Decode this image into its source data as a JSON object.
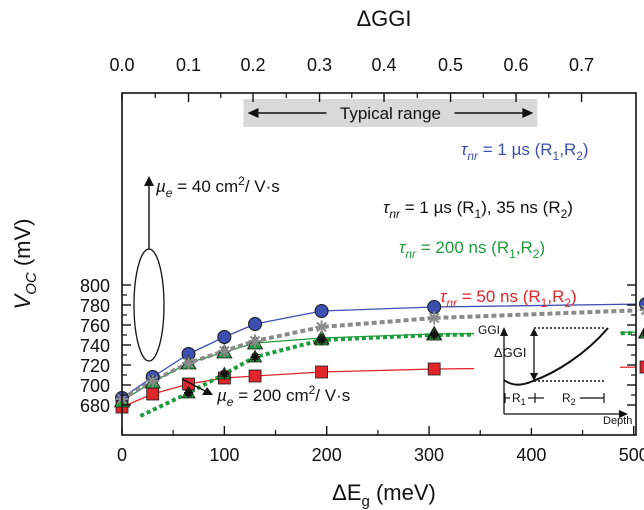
{
  "chart_data": {
    "type": "line",
    "xlabel": {
      "base": "ΔE",
      "sub": "g",
      "rest": " (meV)"
    },
    "ylabel": {
      "base": "V",
      "sub": "OC",
      "rest": " (mV)"
    },
    "top_axis_label": "ΔGGI",
    "xlim": [
      0,
      520
    ],
    "ylim": [
      670,
      810
    ],
    "x_ticks": [
      "0",
      "100",
      "200",
      "300",
      "400",
      "500"
    ],
    "x_tick_values": [
      0,
      100,
      200,
      300,
      400,
      500
    ],
    "y_ticks": [
      "680",
      "700",
      "720",
      "740",
      "760",
      "780",
      "800"
    ],
    "y_tick_values": [
      680,
      700,
      720,
      740,
      760,
      780,
      800
    ],
    "top_ticks": [
      "0.0",
      "0.1",
      "0.2",
      "0.3",
      "0.4",
      "0.5",
      "0.6",
      "0.7"
    ],
    "top_tick_dEg": [
      0,
      65,
      128,
      193,
      256,
      321,
      385,
      449
    ],
    "typical_range": {
      "label": "Typical range",
      "x": [
        150,
        400
      ]
    },
    "series": [
      {
        "name": "τnr = 1 µs (R1,R2)",
        "color": "#3d4fb0",
        "marker": "circle",
        "line": "solid",
        "x": [
          0,
          30,
          65,
          100,
          130,
          195,
          305,
          512
        ],
        "y": [
          687,
          708,
          731,
          748,
          761,
          774,
          778,
          781
        ]
      },
      {
        "name": "τnr = 1 µs (R1), 35 ns (R2)",
        "color": "#8a8a8a",
        "marker": "star",
        "line": "dashed",
        "x": [
          0,
          30,
          65,
          100,
          130,
          195,
          305,
          512
        ],
        "y": [
          686,
          704,
          722,
          734,
          744,
          758,
          767,
          775
        ]
      },
      {
        "name": "τnr = 200 ns (R1,R2)",
        "color": "#1e9b3c",
        "marker": "triangle",
        "line": "solid",
        "x": [
          0,
          30,
          65,
          100,
          130,
          195,
          305,
          512
        ],
        "y": [
          684,
          703,
          722,
          733,
          742,
          747,
          751,
          753
        ]
      },
      {
        "name": "τnr = 50 ns (R1,R2)",
        "color": "#e0262b",
        "marker": "square",
        "line": "solid",
        "x": [
          0,
          30,
          65,
          100,
          130,
          195,
          305,
          512
        ],
        "y": [
          678,
          691,
          701,
          707,
          709,
          713,
          716,
          718
        ]
      },
      {
        "name": "µe = 200 cm2/V·s",
        "color": "#1e9b3c",
        "marker": "star-on-triangle",
        "line": "dotted",
        "x": [
          65,
          100,
          130,
          195,
          305,
          512
        ],
        "y": [
          692,
          711,
          728,
          745,
          750,
          752
        ],
        "line_x": [
          18,
          65,
          100,
          130,
          195,
          305,
          512
        ],
        "line_y": [
          669,
          692,
          711,
          728,
          745,
          750,
          752
        ]
      }
    ],
    "labels": {
      "s1": [
        "τ",
        "nr",
        " = 1 µs (R",
        "1",
        ",R",
        "2",
        ")"
      ],
      "s2": [
        "τ",
        "nr",
        " = 1 µs (R",
        "1",
        "), 35 ns (R",
        "2",
        ")"
      ],
      "s3": [
        "τ",
        "nr",
        " = 200 ns (R",
        "1",
        ",R",
        "2",
        ")"
      ],
      "s4": [
        "τ",
        "nr",
        " = 50 ns (R",
        "1",
        ",R",
        "2",
        ")"
      ],
      "mu40": [
        "µ",
        "e",
        " = 40 cm",
        "2",
        "/ V·s"
      ],
      "mu200": [
        "µ",
        "e",
        " = 200 cm",
        "2",
        "/ V·s"
      ]
    },
    "inset": {
      "y_label": "GGI",
      "x_label": "Depth",
      "delta_label": "ΔGGI",
      "r1": "R",
      "r1_sub": "1",
      "r2": "R",
      "r2_sub": "2"
    }
  }
}
